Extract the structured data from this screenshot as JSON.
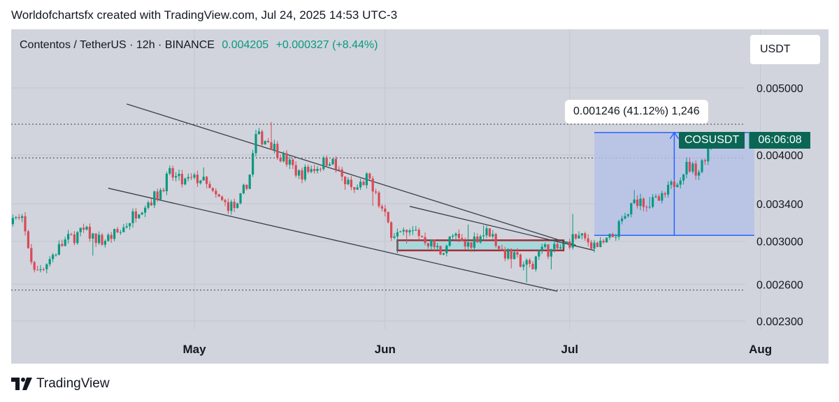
{
  "header": {
    "caption": "Worldofchartsfx created with TradingView.com, Jul 24, 2025 14:53 UTC-3"
  },
  "symbol": {
    "title": "Contentos / TetherUS · 12h · BINANCE",
    "price": "0.004205",
    "change": "+0.000327 (+8.44%)"
  },
  "currency": "USDT",
  "measure_label": "0.001246 (41.12%) 1,246",
  "ticker": {
    "symbol": "COSUSDT",
    "countdown": "06:06:08"
  },
  "footer": {
    "brand": "TradingView"
  },
  "colors": {
    "background": "#d1d4dc",
    "up": "#089981",
    "down": "#d84a57",
    "trendline": "#3b3f4a",
    "measure_fill": "#b4c0e8",
    "measure_line": "#2962ff",
    "zone_fill": "#a8d8dc",
    "zone_border": "#a52d3a"
  },
  "chart_data": {
    "type": "candlestick",
    "x_labels": [
      "May",
      "Jun",
      "Jul",
      "Aug"
    ],
    "y_ticks": [
      "0.005000",
      "0.004000",
      "0.003400",
      "0.003000",
      "0.002600",
      "0.002300"
    ],
    "y_scale": "log",
    "ylim": [
      0.0021,
      0.0058
    ],
    "grid": true,
    "last_price": 0.004205,
    "horizontal_levels": [
      0.00443,
      0.00396,
      0.00255
    ],
    "trendlines": [
      {
        "from": [
          "Apr 20",
          0.00474
        ],
        "to": [
          "Jul 2",
          0.00296
        ]
      },
      {
        "from": [
          "Apr 17",
          0.00358
        ],
        "to": [
          "Jun 29",
          0.00254
        ]
      },
      {
        "from": [
          "Jun 5",
          0.00337
        ],
        "to": [
          "Jul 5",
          0.00291
        ]
      }
    ],
    "demand_zone": {
      "from": "Jun 3",
      "to": "Jun 30",
      "low": 0.00291,
      "high": 0.00301
    },
    "measurement": {
      "from": "Jul 5",
      "to": "Jul 31",
      "low": 0.00306,
      "high": 0.00431,
      "change": 0.001246,
      "percent": 41.12
    },
    "anchors": [
      [
        "Apr 1",
        0.00325
      ],
      [
        "Apr 3",
        0.0032
      ],
      [
        "Apr 5",
        0.0027
      ],
      [
        "Apr 7",
        0.0028
      ],
      [
        "Apr 10",
        0.003
      ],
      [
        "Apr 13",
        0.0031
      ],
      [
        "Apr 16",
        0.003
      ],
      [
        "Apr 19",
        0.0031
      ],
      [
        "Apr 22",
        0.00335
      ],
      [
        "Apr 25",
        0.0035
      ],
      [
        "Apr 27",
        0.00375
      ],
      [
        "Apr 29",
        0.00365
      ],
      [
        "May 2",
        0.0037
      ],
      [
        "May 4",
        0.0035
      ],
      [
        "May 6",
        0.0034
      ],
      [
        "May 8",
        0.00335
      ],
      [
        "May 10",
        0.00375
      ],
      [
        "May 11",
        0.00425
      ],
      [
        "May 13",
        0.0042
      ],
      [
        "May 15",
        0.004
      ],
      [
        "May 18",
        0.00375
      ],
      [
        "May 21",
        0.00385
      ],
      [
        "May 23",
        0.00395
      ],
      [
        "May 25",
        0.0037
      ],
      [
        "May 27",
        0.00355
      ],
      [
        "May 29",
        0.0037
      ],
      [
        "May 31",
        0.0034
      ],
      [
        "Jun 2",
        0.0031
      ],
      [
        "Jun 4",
        0.00305
      ],
      [
        "Jun 6",
        0.0031
      ],
      [
        "Jun 8",
        0.003
      ],
      [
        "Jun 10",
        0.0029
      ],
      [
        "Jun 12",
        0.00305
      ],
      [
        "Jun 14",
        0.00295
      ],
      [
        "Jun 16",
        0.00305
      ],
      [
        "Jun 18",
        0.0031
      ],
      [
        "Jun 20",
        0.0029
      ],
      [
        "Jun 23",
        0.0028
      ],
      [
        "Jun 25",
        0.00275
      ],
      [
        "Jun 26",
        0.00295
      ],
      [
        "Jun 28",
        0.0029
      ],
      [
        "Jun 30",
        0.00295
      ],
      [
        "Jul 2",
        0.00305
      ],
      [
        "Jul 4",
        0.003
      ],
      [
        "Jul 6",
        0.00295
      ],
      [
        "Jul 8",
        0.00305
      ],
      [
        "Jul 10",
        0.00325
      ],
      [
        "Jul 12",
        0.00345
      ],
      [
        "Jul 14",
        0.0034
      ],
      [
        "Jul 16",
        0.00345
      ],
      [
        "Jul 18",
        0.00365
      ],
      [
        "Jul 20",
        0.00385
      ],
      [
        "Jul 22",
        0.0038
      ],
      [
        "Jul 23",
        0.004
      ],
      [
        "Jul 24",
        0.004205
      ]
    ]
  }
}
